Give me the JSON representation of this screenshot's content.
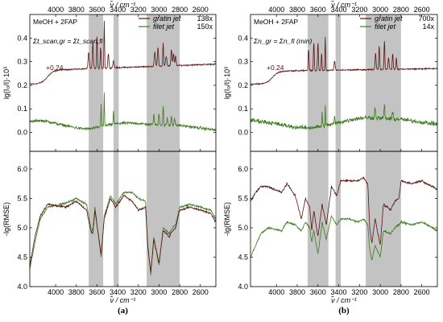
{
  "chart_data": [
    {
      "type": "line",
      "id": "a",
      "panel_label": "(a)",
      "x_axis": {
        "label": "ν̃ / cm⁻¹",
        "range": [
          4250,
          2450
        ],
        "ticks": [
          4000,
          3800,
          3600,
          3400,
          3200,
          3000,
          2800,
          2600
        ]
      },
      "top": {
        "ylabel": "lg(I₀/I)·10³",
        "ylim": [
          -0.08,
          0.5
        ],
        "yticks": [
          0.0,
          0.1,
          0.2,
          0.3,
          0.4
        ],
        "annotation_sample": "MeOH + 2FAP",
        "annotation_condition": "Σt_scan,gr = Σt_scan,fi",
        "offset_label": "+0.24",
        "series": [
          {
            "name": "gratin jet",
            "factor": "138x",
            "color": "#5a1414",
            "offset": 0.24
          },
          {
            "name": "filet jet",
            "factor": "150x",
            "color": "#3e7a1e",
            "offset": 0.0
          }
        ]
      },
      "bottom": {
        "ylabel": "-lg(RMSE)",
        "ylim": [
          4.0,
          6.3
        ],
        "yticks": [
          4.0,
          4.5,
          5.0,
          5.5,
          6.0
        ]
      },
      "shaded_regions": [
        [
          3680,
          3540
        ],
        [
          3440,
          3390
        ],
        [
          3120,
          2800
        ]
      ]
    },
    {
      "type": "line",
      "id": "b",
      "panel_label": "(b)",
      "x_axis": {
        "label": "ν̃ / cm⁻¹",
        "range": [
          4250,
          2450
        ],
        "ticks": [
          4000,
          3800,
          3600,
          3400,
          3200,
          3000,
          2800,
          2600
        ]
      },
      "top": {
        "ylabel": "lg(I₀/I)·10³",
        "ylim": [
          -0.08,
          0.5
        ],
        "yticks": [
          0.0,
          0.1,
          0.2,
          0.3,
          0.4
        ],
        "annotation_sample": "MeOH + 2FAP",
        "annotation_condition": "Σn_gr = Σn_fi (min)",
        "offset_label": "+0.24",
        "series": [
          {
            "name": "gratin jet",
            "factor": "700x",
            "color": "#5a1414",
            "offset": 0.24
          },
          {
            "name": "filet jet",
            "factor": "14x",
            "color": "#3e7a1e",
            "offset": 0.0
          }
        ]
      },
      "bottom": {
        "ylabel": "-lg(RMSE)",
        "ylim": [
          4.0,
          6.3
        ],
        "yticks": [
          4.0,
          4.5,
          5.0,
          5.5,
          6.0
        ]
      },
      "shaded_regions": [
        [
          3700,
          3500
        ],
        [
          3430,
          3380
        ],
        [
          3140,
          2800
        ]
      ]
    }
  ],
  "colors": {
    "gratin": "#5a1414",
    "filet": "#3e7a1e",
    "shade": "#c3c3c3",
    "axis": "#000000"
  }
}
